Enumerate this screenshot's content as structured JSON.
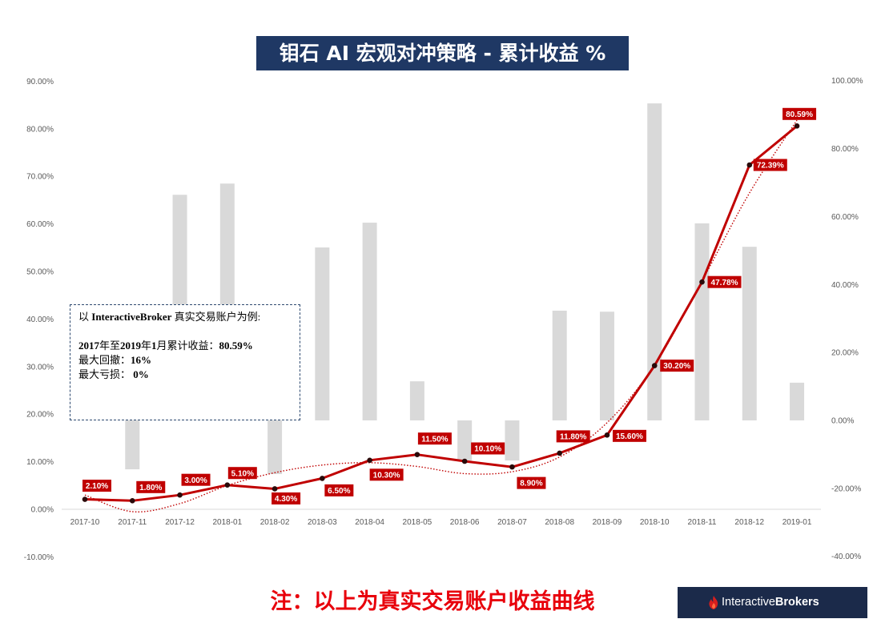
{
  "chart_data": {
    "type": "bar+line",
    "title": "钼石 AI 宏观对冲策略 - 累计收益 %",
    "categories": [
      "2017-10",
      "2017-11",
      "2017-12",
      "2018-01",
      "2018-02",
      "2018-03",
      "2018-04",
      "2018-05",
      "2018-06",
      "2018-07",
      "2018-08",
      "2018-09",
      "2018-10",
      "2018-11",
      "2018-12",
      "2019-01"
    ],
    "y_left": {
      "min": -10,
      "max": 90,
      "ticks": [
        90,
        80,
        70,
        60,
        50,
        40,
        30,
        20,
        10,
        0,
        -10
      ],
      "tick_labels": [
        "90.00%",
        "80.00%",
        "70.00%",
        "60.00%",
        "50.00%",
        "40.00%",
        "30.00%",
        "20.00%",
        "10.00%",
        "0.00%",
        "-10.00%"
      ]
    },
    "y_right": {
      "min": -40,
      "max": 100,
      "ticks": [
        100,
        80,
        60,
        40,
        20,
        0,
        -20,
        -40
      ],
      "tick_labels": [
        "100.00%",
        "80.00%",
        "60.00%",
        "40.00%",
        "20.00%",
        "0.00%",
        "-20.00%",
        "-40.00%"
      ]
    },
    "series": [
      {
        "type": "bar",
        "axis": "right",
        "color": "#d9d9d9",
        "values": [
          null,
          -14.4,
          66.4,
          69.7,
          -15.8,
          50.9,
          58.2,
          11.5,
          -11.8,
          -11.8,
          32.3,
          32.0,
          93.3,
          58.0,
          51.1,
          11.1
        ]
      },
      {
        "type": "line",
        "axis": "left",
        "color": "#c00000",
        "marker_color": "#2a0a0a",
        "values": [
          2.1,
          1.8,
          3.0,
          5.1,
          4.3,
          6.5,
          10.3,
          11.5,
          10.1,
          8.9,
          11.8,
          15.6,
          30.2,
          47.78,
          72.39,
          80.59
        ],
        "data_labels": [
          "2.10%",
          "1.80%",
          "3.00%",
          "5.10%",
          "4.30%",
          "6.50%",
          "10.30%",
          "11.50%",
          "10.10%",
          "8.90%",
          "11.80%",
          "15.60%",
          "30.20%",
          "47.78%",
          "72.39%",
          "80.59%"
        ],
        "label_color": "#c00000"
      },
      {
        "type": "trendline",
        "axis": "left",
        "style": "dotted",
        "color": "#c00000",
        "values": [
          3.0,
          -0.5,
          1.2,
          5.0,
          7.7,
          9.3,
          9.8,
          9.0,
          7.5,
          7.9,
          11.0,
          18.2,
          30.3,
          48.0,
          66.5,
          81.8
        ]
      }
    ],
    "grid": false,
    "legend": "none"
  },
  "annotation": {
    "intro_prefix": "以 ",
    "intro_brand": "InteractiveBroker",
    "intro_suffix": " 真实交易账户为例:",
    "return_year_start": "2017",
    "return_text1": "年至",
    "return_year_end": "2019",
    "return_text2": "年",
    "return_month": "1",
    "return_text3": "月累计收益：",
    "return_value": "80.59%",
    "drawdown_label": "最大回撤：",
    "drawdown_value": "16%",
    "loss_label": "最大亏损： ",
    "loss_value": "0%"
  },
  "note": "注：以上为真实交易账户收益曲线",
  "logo": {
    "icon": "ib-flame-icon",
    "brand_part1": "Interactive",
    "brand_part2": "Brokers"
  }
}
